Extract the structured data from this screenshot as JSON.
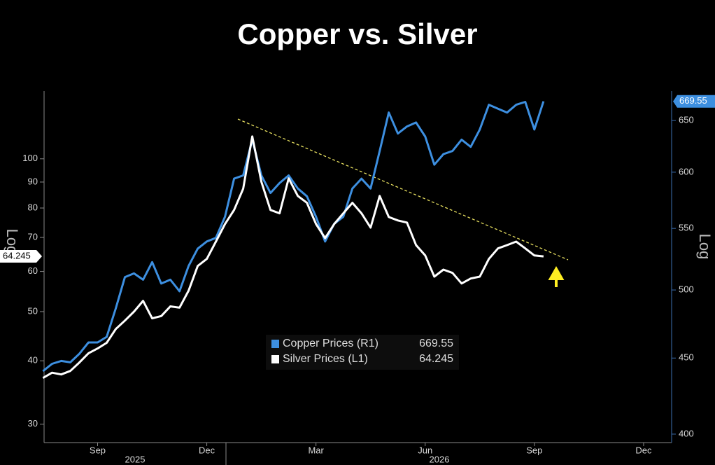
{
  "chart_data": {
    "type": "line",
    "title": "Copper vs. Silver",
    "log_scale": true,
    "x": [
      7.5,
      7.75,
      8,
      8.25,
      8.5,
      8.75,
      9,
      9.25,
      9.5,
      9.75,
      10,
      10.25,
      10.5,
      10.75,
      11,
      11.25,
      11.5,
      11.75,
      12,
      12.25,
      12.5,
      12.75,
      13,
      13.25,
      13.5,
      13.75,
      14,
      14.25,
      14.5,
      14.75,
      15,
      15.25,
      15.5,
      15.75,
      16,
      16.25,
      16.5,
      16.75,
      17,
      17.25,
      17.5,
      17.75,
      18,
      18.25,
      18.5,
      18.75,
      19,
      19.25,
      19.5,
      19.75,
      20,
      20.25,
      20.5,
      20.75,
      21,
      21.25
    ],
    "xlim": [
      7.53,
      24.77
    ],
    "xticks": [
      {
        "value": 9,
        "label": "Sep"
      },
      {
        "value": 12,
        "label": "Dec"
      },
      {
        "value": 15,
        "label": "Mar"
      },
      {
        "value": 18,
        "label": "Jun"
      },
      {
        "value": 21,
        "label": "Sep"
      },
      {
        "value": 24,
        "label": "Dec"
      }
    ],
    "x_group_labels": [
      "2025",
      "2026"
    ],
    "ylim": [
      27.6,
      136
    ],
    "yticks": [
      30,
      40,
      50,
      60,
      70,
      80,
      90,
      100
    ],
    "y_axis_label": "Log",
    "y2lim": [
      394.8,
      680.3
    ],
    "y2ticks": [
      400,
      450,
      500,
      550,
      600,
      650
    ],
    "y2_axis_label": "Log",
    "series": [
      {
        "name": "Copper Prices (R1)",
        "color": "#3d8fe0",
        "axis": "y2",
        "values": [
          441,
          446,
          448,
          447,
          453,
          461,
          461,
          465,
          486,
          510,
          513,
          508,
          522,
          505,
          508,
          499,
          519,
          533,
          539,
          542,
          560,
          594,
          597,
          631,
          597,
          581,
          590,
          597,
          585,
          578,
          560,
          539,
          554,
          560,
          585,
          594,
          585,
          620,
          658,
          637,
          644,
          648,
          634,
          607,
          617,
          620,
          631,
          624,
          641,
          666,
          662,
          658,
          666,
          669,
          641,
          669.55
        ]
      },
      {
        "name": "Silver Prices (L1)",
        "color": "#ffffff",
        "axis": "y",
        "values": [
          37.0,
          37.9,
          37.6,
          38.2,
          39.7,
          41.4,
          42.3,
          43.4,
          46.2,
          48.0,
          50.0,
          52.5,
          48.5,
          49.0,
          51.2,
          50.9,
          55.0,
          61.5,
          63.5,
          68.7,
          74.4,
          79.3,
          87.3,
          110.7,
          90.1,
          79.3,
          78.1,
          91.5,
          84.5,
          81.9,
          74.4,
          69.8,
          74.4,
          78.1,
          81.9,
          78.1,
          73.2,
          84.5,
          76.8,
          75.6,
          74.9,
          67.6,
          64.5,
          58.6,
          60.5,
          59.6,
          56.8,
          58.1,
          58.6,
          63.5,
          66.6,
          67.6,
          68.7,
          66.6,
          64.5,
          64.245
        ]
      }
    ]
  }
}
